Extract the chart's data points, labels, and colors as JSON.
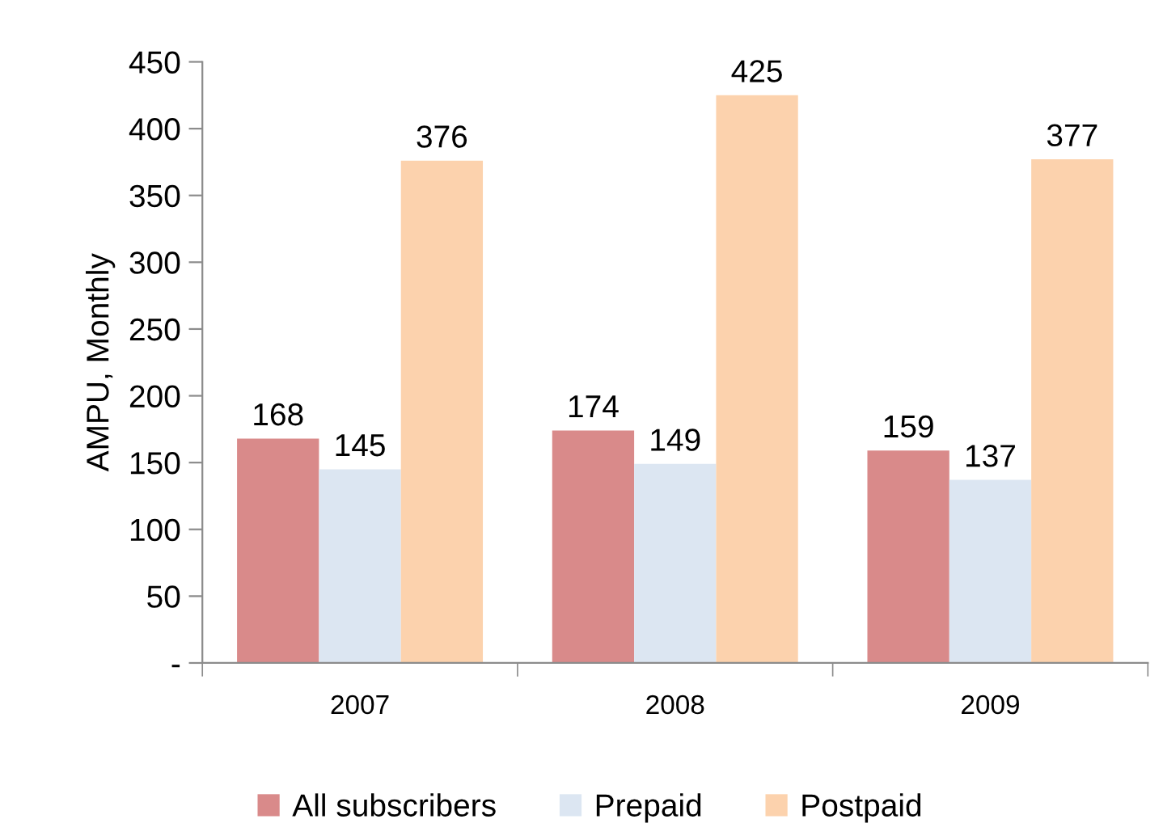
{
  "chart_data": {
    "type": "bar",
    "ylabel": "AMPU, Monthly",
    "categories": [
      "2007",
      "2008",
      "2009"
    ],
    "series": [
      {
        "name": "All subscribers",
        "color": "#d98a8a",
        "values": [
          168,
          174,
          159
        ]
      },
      {
        "name": "Prepaid",
        "color": "#dce6f2",
        "values": [
          145,
          149,
          137
        ]
      },
      {
        "name": "Postpaid",
        "color": "#fcd2ad",
        "values": [
          376,
          425,
          377
        ]
      }
    ],
    "ylim": [
      0,
      450
    ],
    "yticks": [
      {
        "value": 0,
        "label": "-"
      },
      50,
      100,
      150,
      200,
      250,
      300,
      350,
      400,
      450
    ],
    "data_labels": true,
    "grid": false,
    "legend": "bottom"
  }
}
